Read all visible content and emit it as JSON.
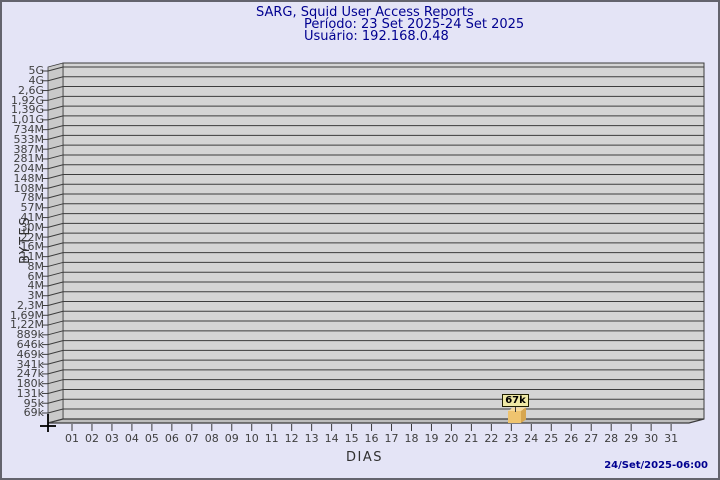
{
  "header": {
    "title": "SARG, Squid User Access Reports",
    "period": "Período: 23 Set 2025-24 Set 2025",
    "user": "Usuário: 192.168.0.48"
  },
  "y_axis": {
    "title": "BYTES",
    "ticks": [
      "5G",
      "4G",
      "2,6G",
      "1,92G",
      "1,39G",
      "1,01G",
      "734M",
      "533M",
      "387M",
      "281M",
      "204M",
      "148M",
      "108M",
      "78M",
      "57M",
      "41M",
      "30M",
      "22M",
      "16M",
      "11M",
      "8M",
      "6M",
      "4M",
      "3M",
      "2,3M",
      "1,69M",
      "1,22M",
      "889k",
      "646k",
      "469k",
      "341k",
      "247k",
      "180k",
      "131k",
      "95k",
      "69k"
    ]
  },
  "x_axis": {
    "title": "DIAS",
    "ticks": [
      "01",
      "02",
      "03",
      "04",
      "05",
      "06",
      "07",
      "08",
      "09",
      "10",
      "11",
      "12",
      "13",
      "14",
      "15",
      "16",
      "17",
      "18",
      "19",
      "20",
      "21",
      "22",
      "23",
      "24",
      "25",
      "26",
      "27",
      "28",
      "29",
      "30",
      "31"
    ]
  },
  "bar": {
    "day": "23",
    "value_label": "67k"
  },
  "footer": {
    "generated": "24/Set/2025-06:00"
  },
  "colors": {
    "accent_text": "#000090",
    "background": "#e4e4f6",
    "back_wall": "#d4d4d4",
    "left_wall": "#c9c9c9",
    "floor": "#bdbdbd",
    "grid": "#3c3c3c",
    "bar_front": "#efc46f",
    "bar_top": "#f6da9c",
    "bar_side": "#d7a64f",
    "callout_bg": "#efe9a6"
  },
  "chart_data": {
    "type": "bar",
    "title": "SARG, Squid User Access Reports",
    "subtitle": "Período: 23 Set 2025-24 Set 2025",
    "user": "Usuário: 192.168.0.48",
    "xlabel": "DIAS",
    "ylabel": "BYTES",
    "x": [
      "01",
      "02",
      "03",
      "04",
      "05",
      "06",
      "07",
      "08",
      "09",
      "10",
      "11",
      "12",
      "13",
      "14",
      "15",
      "16",
      "17",
      "18",
      "19",
      "20",
      "21",
      "22",
      "23",
      "24",
      "25",
      "26",
      "27",
      "28",
      "29",
      "30",
      "31"
    ],
    "y_tick_labels_top_to_bottom": [
      "5G",
      "4G",
      "2,6G",
      "1,92G",
      "1,39G",
      "1,01G",
      "734M",
      "533M",
      "387M",
      "281M",
      "204M",
      "148M",
      "108M",
      "78M",
      "57M",
      "41M",
      "30M",
      "22M",
      "16M",
      "11M",
      "8M",
      "6M",
      "4M",
      "3M",
      "2,3M",
      "1,69M",
      "1,22M",
      "889k",
      "646k",
      "469k",
      "341k",
      "247k",
      "180k",
      "131k",
      "95k",
      "69k"
    ],
    "series": [
      {
        "name": "bytes_per_day",
        "values": [
          0,
          0,
          0,
          0,
          0,
          0,
          0,
          0,
          0,
          0,
          0,
          0,
          0,
          0,
          0,
          0,
          0,
          0,
          0,
          0,
          0,
          0,
          67000,
          0,
          0,
          0,
          0,
          0,
          0,
          0,
          0
        ]
      }
    ],
    "annotations": [
      {
        "x": "23",
        "label": "67k"
      }
    ],
    "y_scale": "log",
    "grid": "horizontal",
    "legend": "none",
    "footer_timestamp": "24/Set/2025-06:00"
  }
}
